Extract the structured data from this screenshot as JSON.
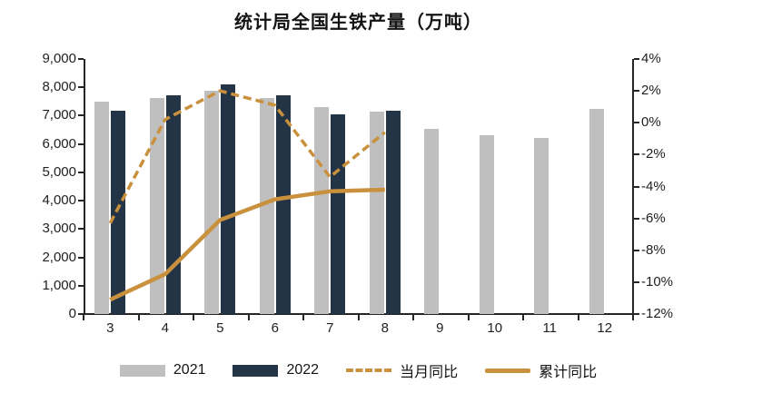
{
  "title": "统计局全国生铁产量（万吨）",
  "chart_data": {
    "type": "combo-bar-line",
    "title": "统计局全国生铁产量（万吨）",
    "categories": [
      "3",
      "4",
      "5",
      "6",
      "7",
      "8",
      "9",
      "10",
      "11",
      "12"
    ],
    "left_axis": {
      "min": 0,
      "max": 9000,
      "tick_step": 1000,
      "ticks": [
        "9,000",
        "8,000",
        "7,000",
        "6,000",
        "5,000",
        "4,000",
        "3,000",
        "2,000",
        "1,000",
        "0"
      ]
    },
    "right_axis": {
      "min": -12,
      "max": 4,
      "tick_step": 2,
      "ticks": [
        "4%",
        "2%",
        "0%",
        "-2%",
        "-4%",
        "-6%",
        "-8%",
        "-10%",
        "-12%"
      ]
    },
    "grid": false,
    "legend_position": "bottom",
    "series": [
      {
        "name": "2021",
        "kind": "bar",
        "axis": "left",
        "color": "#bfbfbf",
        "values": [
          7500,
          7620,
          7880,
          7610,
          7290,
          7150,
          6540,
          6310,
          6200,
          7240
        ]
      },
      {
        "name": "2022",
        "kind": "bar",
        "axis": "left",
        "color": "#233447",
        "values": [
          7180,
          7720,
          8090,
          7720,
          7060,
          7160,
          null,
          null,
          null,
          null
        ]
      },
      {
        "name": "当月同比",
        "kind": "line",
        "style": "dashed",
        "axis": "right",
        "color": "#c9913d",
        "values": [
          -6.3,
          0.2,
          2.0,
          1.1,
          -3.4,
          -0.6,
          null,
          null,
          null,
          null
        ]
      },
      {
        "name": "累计同比",
        "kind": "line",
        "style": "solid",
        "axis": "right",
        "color": "#c9913d",
        "values": [
          -11.1,
          -9.5,
          -6.1,
          -4.8,
          -4.3,
          -4.2,
          null,
          null,
          null,
          null
        ]
      }
    ]
  }
}
